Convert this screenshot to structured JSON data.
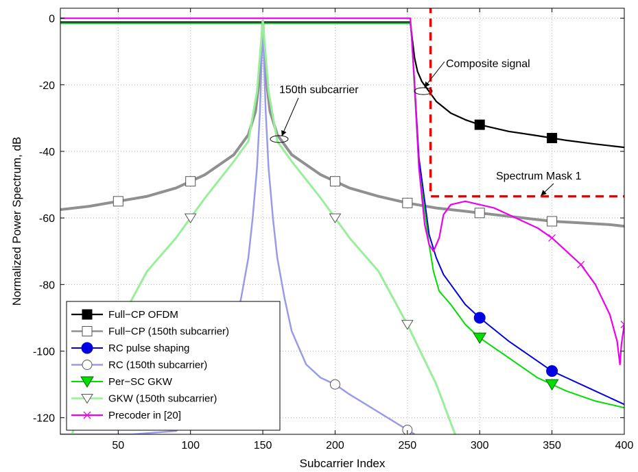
{
  "chart_data": {
    "type": "line",
    "xlabel": "Subcarrier Index",
    "ylabel": "Normalized Power Spectrum, dB",
    "xlim": [
      10,
      400
    ],
    "ylim": [
      -125,
      3
    ],
    "xticks": [
      50,
      100,
      150,
      200,
      250,
      300,
      350,
      400
    ],
    "yticks": [
      0,
      -20,
      -40,
      -60,
      -80,
      -100,
      -120
    ],
    "grid": true,
    "legend_placement": "bottom-left",
    "series": [
      {
        "name": "Full−CP OFDM",
        "color": "#000000",
        "width": 2.2,
        "marker": "filled-square",
        "x": [
          10,
          252,
          253,
          255,
          257,
          260,
          265,
          270,
          280,
          290,
          300,
          320,
          340,
          350,
          360,
          380,
          400
        ],
        "y": [
          -1.2,
          -1.2,
          -5,
          -12,
          -16,
          -19,
          -22,
          -25,
          -28.5,
          -30.5,
          -32,
          -34,
          -35.3,
          -36,
          -36.7,
          -37.8,
          -38.8
        ],
        "marker_x": [
          300,
          350
        ]
      },
      {
        "name": "Full−CP (150th subcarrier)",
        "color": "#909090",
        "width": 4,
        "marker": "open-square",
        "x": [
          10,
          30,
          50,
          70,
          90,
          110,
          130,
          140,
          145,
          148,
          150,
          152,
          155,
          160,
          170,
          190,
          210,
          230,
          250,
          270,
          290,
          310,
          330,
          350,
          370,
          390,
          400
        ],
        "y": [
          -57.5,
          -56.5,
          -55,
          -53.5,
          -51,
          -47,
          -41,
          -35,
          -28,
          -17,
          -1,
          -17,
          -28,
          -35,
          -41,
          -47,
          -51,
          -53.5,
          -55.5,
          -57,
          -58,
          -59,
          -60,
          -61,
          -61.5,
          -62,
          -62.5
        ],
        "marker_x": [
          50,
          100,
          200,
          250,
          300,
          350
        ]
      },
      {
        "name": "RC pulse shaping",
        "color": "#0000e0",
        "width": 2,
        "marker": "filled-circle",
        "x": [
          10,
          252,
          253,
          255,
          258,
          262,
          265,
          270,
          275,
          280,
          290,
          300,
          320,
          340,
          350,
          360,
          380,
          400
        ],
        "y": [
          -1.5,
          -1.5,
          -6,
          -20,
          -42,
          -55,
          -65,
          -72,
          -77,
          -80,
          -86,
          -90,
          -97,
          -103,
          -106,
          -108,
          -112,
          -116
        ],
        "marker_x": [
          300,
          350
        ]
      },
      {
        "name": "RC (150th subcarrier)",
        "color": "#9a9aea",
        "width": 2.5,
        "marker": "open-circle",
        "x": [
          10,
          60,
          90,
          110,
          120,
          130,
          135,
          140,
          143,
          146,
          148,
          150,
          152,
          154,
          157,
          160,
          165,
          170,
          180,
          190,
          200,
          210,
          225,
          240,
          255
        ],
        "y": [
          -125,
          -125,
          -124,
          -118,
          -108,
          -94,
          -84,
          -72,
          -60,
          -45,
          -28,
          -2,
          -28,
          -45,
          -60,
          -72,
          -84,
          -94,
          -104,
          -108,
          -110,
          -113,
          -117,
          -121,
          -125
        ],
        "marker_x": [
          200,
          250
        ]
      },
      {
        "name": "Per−SC GKW",
        "color": "#00dd00",
        "width": 2,
        "marker": "filled-triangle-down",
        "x": [
          10,
          252,
          253,
          255,
          258,
          262,
          265,
          268,
          272,
          280,
          290,
          300,
          320,
          340,
          350,
          360,
          380,
          400
        ],
        "y": [
          -1.5,
          -1.5,
          -6,
          -22,
          -45,
          -58,
          -68,
          -76,
          -82,
          -86,
          -92,
          -96,
          -102,
          -108,
          -110,
          -112,
          -115,
          -117
        ],
        "marker_x": [
          300,
          350
        ]
      },
      {
        "name": "GKW (150th subcarrier)",
        "color": "#99ee99",
        "width": 3,
        "marker": "open-triangle-down",
        "x": [
          10,
          30,
          50,
          70,
          90,
          110,
          130,
          140,
          146,
          150,
          154,
          160,
          170,
          190,
          210,
          230,
          250,
          270,
          283
        ],
        "y": [
          -135,
          -110,
          -92,
          -76,
          -66,
          -54,
          -43,
          -37,
          -22,
          -1,
          -22,
          -37,
          -43,
          -54,
          -66,
          -76,
          -92,
          -110,
          -125
        ],
        "marker_x": [
          100,
          200,
          250
        ]
      },
      {
        "name": "Precoder in [20]",
        "color": "#ee00ee",
        "width": 2.2,
        "marker": "x",
        "x": [
          10,
          252,
          253,
          255,
          258,
          262,
          265,
          268,
          272,
          275,
          280,
          290,
          300,
          310,
          320,
          340,
          350,
          360,
          370,
          380,
          390,
          395,
          397,
          398,
          400
        ],
        "y": [
          0,
          0,
          -6,
          -20,
          -45,
          -62,
          -68,
          -70,
          -66,
          -59,
          -56,
          -55,
          -56,
          -57,
          -59,
          -63,
          -66,
          -70,
          -74,
          -80,
          -89,
          -97,
          -104,
          -98,
          -92
        ],
        "marker_x": [
          350,
          370,
          400
        ]
      },
      {
        "name": "Spectrum Mask 1",
        "color": "#ee0000",
        "width": 3.5,
        "marker": "none",
        "dashed": true,
        "x": [
          266,
          266,
          400
        ],
        "y": [
          4,
          -53.5,
          -53.5
        ],
        "marker_x": []
      }
    ],
    "annotations": [
      {
        "text": "Composite signal",
        "x": 271,
        "y": -12
      },
      {
        "text": "150th subcarrier",
        "x": 105,
        "y": -21
      },
      {
        "text": "Spectrum Mask 1",
        "x": 303,
        "y": -47
      }
    ]
  }
}
